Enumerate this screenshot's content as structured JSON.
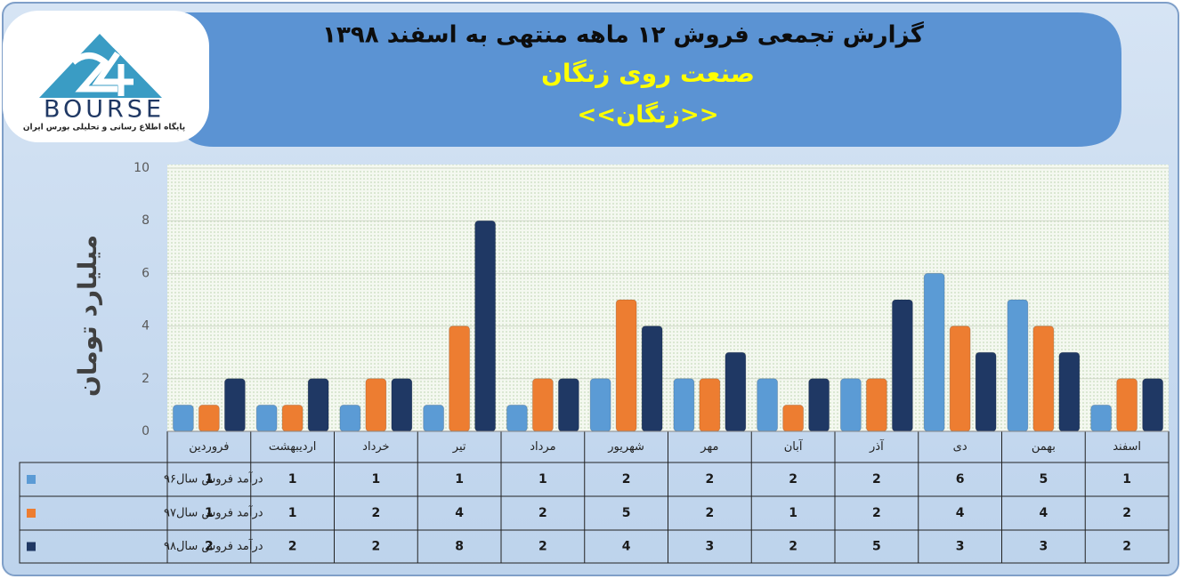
{
  "logo": {
    "text": "BOURSE",
    "caption": "پایگاه اطلاع رسانی و تحلیلی بورس ایران"
  },
  "chart_data": {
    "type": "bar",
    "title": "گزارش تجمعی فروش  ۱۲ ماهه منتهی به اسفند  ۱۳۹۸",
    "subtitle": "صنعت روی زنگان",
    "subtitle2": "<<زنگان>>",
    "y_label": "میلیارد تومان",
    "categories": [
      "فروردین",
      "اردیبهشت",
      "خرداد",
      "تیر",
      "مرداد",
      "شهریور",
      "مهر",
      "آبان",
      "آذر",
      "دی",
      "بهمن",
      "اسفند"
    ],
    "series": [
      {
        "name": "درآمد فروش سال۹۶",
        "color": "#5b9bd5",
        "values": [
          1,
          1,
          1,
          1,
          1,
          2,
          2,
          2,
          2,
          6,
          5,
          1
        ]
      },
      {
        "name": "درآمد فروش سال۹۷",
        "color": "#ed7d31",
        "values": [
          1,
          1,
          2,
          4,
          2,
          5,
          2,
          1,
          2,
          4,
          4,
          2
        ]
      },
      {
        "name": "درآمد فروش سال۹۸",
        "color": "#1f3864",
        "values": [
          2,
          2,
          2,
          8,
          2,
          4,
          3,
          2,
          5,
          3,
          3,
          2
        ]
      }
    ],
    "ylim": [
      0,
      10
    ],
    "yticks": [
      0,
      2,
      4,
      6,
      8,
      10
    ],
    "grid": true,
    "data_table": true
  }
}
